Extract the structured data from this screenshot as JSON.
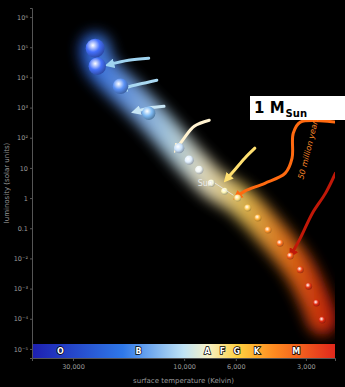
{
  "chart_data": {
    "type": "scatter",
    "xlabel": "surface temperature (Kelvin)",
    "ylabel": "luminosity (solar units)",
    "log": true,
    "xlim": [
      45000,
      2250
    ],
    "ylim": [
      5e-06,
      2000000
    ],
    "xticks": [
      {
        "value": 30000,
        "label": "30,000"
      },
      {
        "value": 10000,
        "label": "10,000"
      },
      {
        "value": 6000,
        "label": "6,000"
      },
      {
        "value": 3000,
        "label": "3,000"
      }
    ],
    "yticks": [
      {
        "value": 1000000,
        "label": "10⁶"
      },
      {
        "value": 100000,
        "label": "10⁵"
      },
      {
        "value": 10000,
        "label": "10⁴"
      },
      {
        "value": 1000,
        "label": "10³"
      },
      {
        "value": 100,
        "label": "10²"
      },
      10,
      1,
      0.1,
      {
        "value": 0.01,
        "label": "10⁻²"
      },
      {
        "value": 0.001,
        "label": "10⁻³"
      },
      {
        "value": 0.0001,
        "label": "10⁻⁴"
      },
      {
        "value": 1e-05,
        "label": "10⁻⁵"
      }
    ],
    "series": [
      {
        "type": "scatter",
        "marker": "sphere",
        "x": [
          24100,
          23600,
          18760,
          14190,
          10500,
          9510,
          8610,
          7640,
          6700,
          5890,
          5330,
          4820,
          4360,
          3870,
          3500,
          3170,
          2920,
          2700,
          2550
        ],
        "values": [
          93000,
          23500,
          5100,
          650,
          45,
          18,
          8.5,
          3.1,
          1.7,
          1,
          0.47,
          0.22,
          0.087,
          0.032,
          0.012,
          0.0042,
          0.0012,
          0.00033,
          9.1e-05
        ]
      },
      {
        "type": "line",
        "marker": "arrow",
        "color": "#9fd3f0",
        "x": [
          14190,
          17330,
          20740
        ],
        "values": [
          43500,
          37000,
          27300
        ]
      },
      {
        "type": "line",
        "marker": "arrow",
        "color": "#a9d8f2",
        "x": [
          13100,
          15670,
          18200
        ],
        "values": [
          8100,
          5900,
          4400
        ]
      },
      {
        "type": "line",
        "marker": "arrow",
        "color": "#c8e6f5",
        "x": [
          12200,
          14190,
          16000
        ],
        "values": [
          1100,
          960,
          760
        ]
      },
      {
        "type": "line",
        "marker": "arrow",
        "color": "#fff2d0",
        "x": [
          7800,
          9050,
          10000,
          10720
        ],
        "values": [
          380,
          240,
          97,
          45
        ]
      },
      {
        "type": "line",
        "marker": "arrow",
        "color": "#ffe070",
        "x": [
          4970,
          5490,
          6070,
          6510
        ],
        "values": [
          45,
          21,
          8.5,
          4.6
        ]
      },
      {
        "type": "line",
        "marker": "arrow",
        "color": "#ff6a10",
        "x": [
          2260,
          3170,
          3400,
          3440,
          3680,
          4500,
          5490,
          5890
        ],
        "values": [
          330,
          330,
          141,
          21,
          6.7,
          3.1,
          1.7,
          1.16
        ]
      },
      {
        "type": "line",
        "marker": "arrow",
        "color": "#c01808",
        "x": [
          2240,
          2470,
          2810,
          3170,
          3440
        ],
        "values": [
          6.7,
          1.46,
          0.32,
          0.047,
          0.015
        ]
      }
    ],
    "annotations": [
      {
        "text": "Sun",
        "x": 8110,
        "y": 2.5,
        "target": [
          5890,
          1
        ]
      },
      {
        "text": "50 million years",
        "x": 2920,
        "y": 45
      }
    ],
    "mass_label": {
      "text": "1 M",
      "subscript": "Sun"
    },
    "spectral_classes": {
      "labels": [
        "O",
        "B",
        "A",
        "F",
        "G",
        "K",
        "M"
      ],
      "x": [
        34000,
        15700,
        7950,
        6840,
        5940,
        4870,
        3300
      ]
    }
  }
}
